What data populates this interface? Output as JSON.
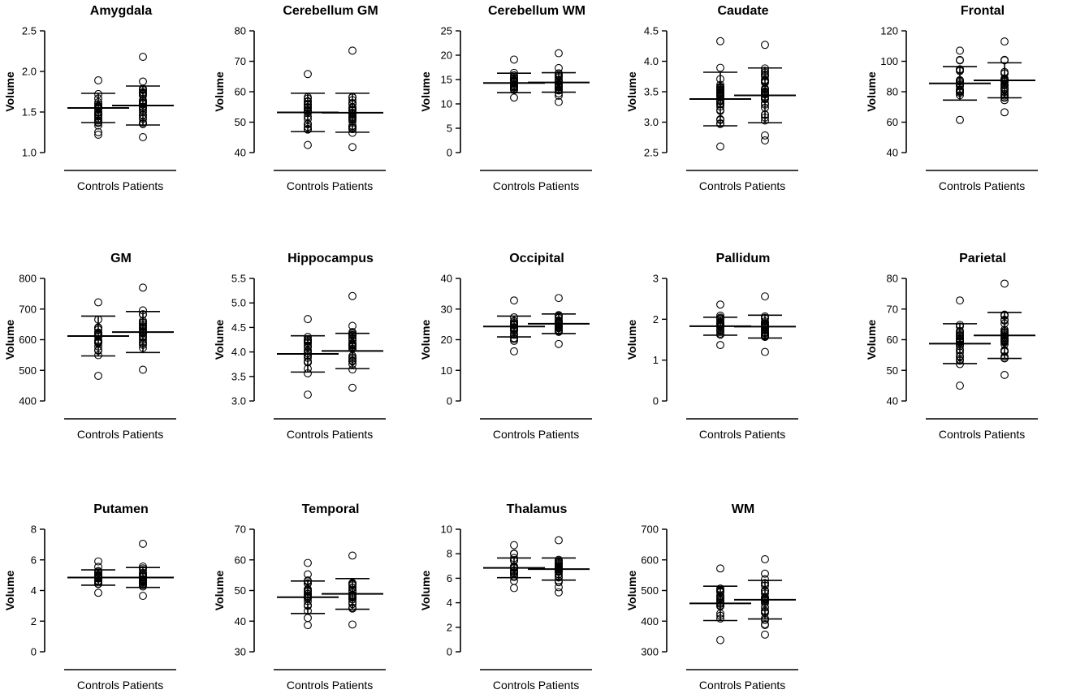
{
  "figure": {
    "categories": [
      "Controls",
      "Patients"
    ],
    "ylabel": "Volume"
  },
  "chart_data": [
    {
      "type": "scatter",
      "title": "Amygdala",
      "ylabel": "Volume",
      "categories": [
        "Controls",
        "Patients"
      ],
      "ylim": [
        1.0,
        2.5
      ],
      "yticks": [
        1.0,
        1.5,
        2.0,
        2.5
      ],
      "tick_decimals": 1,
      "series": [
        {
          "name": "Controls",
          "mean": 1.55,
          "sd": 0.18,
          "min": 1.22,
          "max": 1.89,
          "n": 26
        },
        {
          "name": "Patients",
          "mean": 1.58,
          "sd": 0.24,
          "min": 1.19,
          "max": 2.18,
          "n": 30
        }
      ]
    },
    {
      "type": "scatter",
      "title": "Cerebellum GM",
      "ylabel": "Volume",
      "categories": [
        "Controls",
        "Patients"
      ],
      "ylim": [
        40,
        80
      ],
      "yticks": [
        40,
        50,
        60,
        70,
        80
      ],
      "tick_decimals": 0,
      "series": [
        {
          "name": "Controls",
          "mean": 53.2,
          "sd": 6.3,
          "min": 42.5,
          "max": 65.8,
          "n": 26
        },
        {
          "name": "Patients",
          "mean": 53.1,
          "sd": 6.4,
          "min": 41.8,
          "max": 73.5,
          "n": 30
        }
      ]
    },
    {
      "type": "scatter",
      "title": "Cerebellum WM",
      "ylabel": "Volume",
      "categories": [
        "Controls",
        "Patients"
      ],
      "ylim": [
        0,
        25
      ],
      "yticks": [
        0,
        5,
        10,
        15,
        20,
        25
      ],
      "tick_decimals": 0,
      "series": [
        {
          "name": "Controls",
          "mean": 14.3,
          "sd": 2.0,
          "min": 11.3,
          "max": 19.1,
          "n": 26
        },
        {
          "name": "Patients",
          "mean": 14.4,
          "sd": 2.0,
          "min": 10.4,
          "max": 20.4,
          "n": 30
        }
      ]
    },
    {
      "type": "scatter",
      "title": "Caudate",
      "ylabel": "Volume",
      "categories": [
        "Controls",
        "Patients"
      ],
      "ylim": [
        2.5,
        4.5
      ],
      "yticks": [
        2.5,
        3.0,
        3.5,
        4.0,
        4.5
      ],
      "tick_decimals": 1,
      "series": [
        {
          "name": "Controls",
          "mean": 3.38,
          "sd": 0.44,
          "min": 2.6,
          "max": 4.33,
          "n": 32
        },
        {
          "name": "Patients",
          "mean": 3.44,
          "sd": 0.45,
          "min": 2.7,
          "max": 4.27,
          "n": 34
        }
      ]
    },
    {
      "type": "scatter",
      "title": "Frontal",
      "ylabel": "Volume",
      "categories": [
        "Controls",
        "Patients"
      ],
      "ylim": [
        40,
        120
      ],
      "yticks": [
        40,
        60,
        80,
        100,
        120
      ],
      "tick_decimals": 0,
      "series": [
        {
          "name": "Controls",
          "mean": 85.5,
          "sd": 11,
          "min": 61.5,
          "max": 107,
          "n": 26
        },
        {
          "name": "Patients",
          "mean": 87.5,
          "sd": 11.5,
          "min": 66.5,
          "max": 113,
          "n": 30
        }
      ]
    },
    {
      "type": "scatter",
      "title": "GM",
      "ylabel": "Volume",
      "categories": [
        "Controls",
        "Patients"
      ],
      "ylim": [
        400,
        800
      ],
      "yticks": [
        400,
        500,
        600,
        700,
        800
      ],
      "tick_decimals": 0,
      "series": [
        {
          "name": "Controls",
          "mean": 612,
          "sd": 65,
          "min": 482,
          "max": 722,
          "n": 26
        },
        {
          "name": "Patients",
          "mean": 625,
          "sd": 67,
          "min": 502,
          "max": 770,
          "n": 30
        }
      ]
    },
    {
      "type": "scatter",
      "title": "Hippocampus",
      "ylabel": "Volume",
      "categories": [
        "Controls",
        "Patients"
      ],
      "ylim": [
        3.0,
        5.5
      ],
      "yticks": [
        3.0,
        3.5,
        4.0,
        4.5,
        5.0,
        5.5
      ],
      "tick_decimals": 1,
      "series": [
        {
          "name": "Controls",
          "mean": 3.96,
          "sd": 0.37,
          "min": 3.13,
          "max": 4.67,
          "n": 28
        },
        {
          "name": "Patients",
          "mean": 4.02,
          "sd": 0.36,
          "min": 3.27,
          "max": 5.14,
          "n": 30
        }
      ]
    },
    {
      "type": "scatter",
      "title": "Occipital",
      "ylabel": "Volume",
      "categories": [
        "Controls",
        "Patients"
      ],
      "ylim": [
        0,
        40
      ],
      "yticks": [
        0,
        10,
        20,
        30,
        40
      ],
      "tick_decimals": 0,
      "series": [
        {
          "name": "Controls",
          "mean": 24.3,
          "sd": 3.4,
          "min": 16.2,
          "max": 32.8,
          "n": 26
        },
        {
          "name": "Patients",
          "mean": 25.2,
          "sd": 3.2,
          "min": 18.6,
          "max": 33.6,
          "n": 30
        }
      ]
    },
    {
      "type": "scatter",
      "title": "Pallidum",
      "ylabel": "Volume",
      "categories": [
        "Controls",
        "Patients"
      ],
      "ylim": [
        0,
        3
      ],
      "yticks": [
        0,
        1,
        2,
        3
      ],
      "tick_decimals": 0,
      "series": [
        {
          "name": "Controls",
          "mean": 1.83,
          "sd": 0.22,
          "min": 1.37,
          "max": 2.36,
          "n": 26
        },
        {
          "name": "Patients",
          "mean": 1.82,
          "sd": 0.28,
          "min": 1.2,
          "max": 2.56,
          "n": 30
        }
      ]
    },
    {
      "type": "scatter",
      "title": "Parietal",
      "ylabel": "Volume",
      "categories": [
        "Controls",
        "Patients"
      ],
      "ylim": [
        40,
        80
      ],
      "yticks": [
        40,
        50,
        60,
        70,
        80
      ],
      "tick_decimals": 0,
      "series": [
        {
          "name": "Controls",
          "mean": 58.7,
          "sd": 6.5,
          "min": 45,
          "max": 72.8,
          "n": 28
        },
        {
          "name": "Patients",
          "mean": 61.4,
          "sd": 7.5,
          "min": 48.5,
          "max": 78.3,
          "n": 32
        }
      ]
    },
    {
      "type": "scatter",
      "title": "Putamen",
      "ylabel": "Volume",
      "categories": [
        "Controls",
        "Patients"
      ],
      "ylim": [
        0,
        8
      ],
      "yticks": [
        0,
        2,
        4,
        6,
        8
      ],
      "tick_decimals": 0,
      "series": [
        {
          "name": "Controls",
          "mean": 4.85,
          "sd": 0.5,
          "min": 3.85,
          "max": 5.9,
          "n": 26
        },
        {
          "name": "Patients",
          "mean": 4.85,
          "sd": 0.65,
          "min": 3.65,
          "max": 7.05,
          "n": 30
        }
      ]
    },
    {
      "type": "scatter",
      "title": "Temporal",
      "ylabel": "Volume",
      "categories": [
        "Controls",
        "Patients"
      ],
      "ylim": [
        30,
        70
      ],
      "yticks": [
        30,
        40,
        50,
        60,
        70
      ],
      "tick_decimals": 0,
      "series": [
        {
          "name": "Controls",
          "mean": 47.8,
          "sd": 5.3,
          "min": 38.7,
          "max": 59,
          "n": 26
        },
        {
          "name": "Patients",
          "mean": 48.9,
          "sd": 5.0,
          "min": 38.9,
          "max": 61.4,
          "n": 30
        }
      ]
    },
    {
      "type": "scatter",
      "title": "Thalamus",
      "ylabel": "Volume",
      "categories": [
        "Controls",
        "Patients"
      ],
      "ylim": [
        0,
        10
      ],
      "yticks": [
        0,
        2,
        4,
        6,
        8,
        10
      ],
      "tick_decimals": 0,
      "series": [
        {
          "name": "Controls",
          "mean": 6.85,
          "sd": 0.8,
          "min": 5.2,
          "max": 8.7,
          "n": 26
        },
        {
          "name": "Patients",
          "mean": 6.75,
          "sd": 0.9,
          "min": 4.85,
          "max": 9.1,
          "n": 30
        }
      ]
    },
    {
      "type": "scatter",
      "title": "WM",
      "ylabel": "Volume",
      "categories": [
        "Controls",
        "Patients"
      ],
      "ylim": [
        300,
        700
      ],
      "yticks": [
        300,
        400,
        500,
        600,
        700
      ],
      "tick_decimals": 0,
      "series": [
        {
          "name": "Controls",
          "mean": 458,
          "sd": 56,
          "min": 338,
          "max": 572,
          "n": 24
        },
        {
          "name": "Patients",
          "mean": 470,
          "sd": 63,
          "min": 356,
          "max": 602,
          "n": 28
        }
      ]
    }
  ]
}
